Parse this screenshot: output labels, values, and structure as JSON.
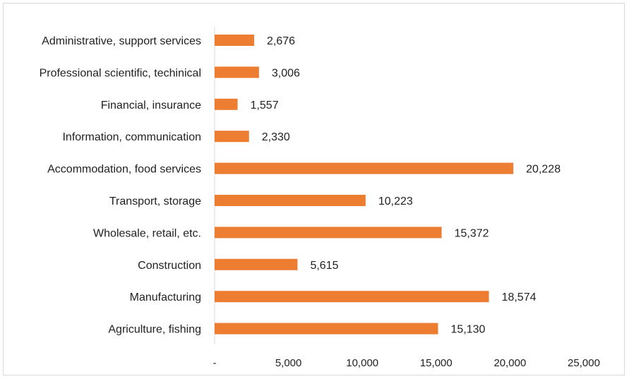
{
  "chart_data": {
    "type": "bar",
    "orientation": "horizontal",
    "categories": [
      "Administrative, support services",
      "Professional scientific, techinical",
      "Financial, insurance",
      "Information, communication",
      "Accommodation, food services",
      "Transport, storage",
      "Wholesale, retail, etc.",
      "Construction",
      "Manufacturing",
      "Agriculture, fishing"
    ],
    "values": [
      2676,
      3006,
      1557,
      2330,
      20228,
      10223,
      15372,
      5615,
      18574,
      15130
    ],
    "value_labels": [
      "2,676",
      "3,006",
      "1,557",
      "2,330",
      "20,228",
      "10,223",
      "15,372",
      "5,615",
      "18,574",
      "15,130"
    ],
    "xlim": [
      0,
      25000
    ],
    "x_ticks": [
      0,
      5000,
      10000,
      15000,
      20000,
      25000
    ],
    "x_tick_labels": [
      "-",
      "5,000",
      "10,000",
      "15,000",
      "20,000",
      "25,000"
    ],
    "title": "",
    "xlabel": "",
    "ylabel": "",
    "grid": false,
    "legend": "none",
    "bar_color": "#ED7D31"
  }
}
